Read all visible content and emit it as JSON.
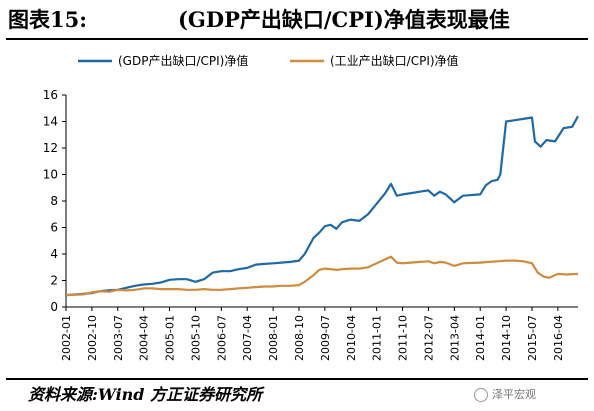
{
  "header": {
    "fig_label": "图表15:",
    "title": "(GDP产出缺口/CPI)净值表现最佳"
  },
  "source": "资料来源:Wind 方正证券研究所",
  "watermark": "泽平宏观",
  "colors": {
    "series1": "#1f6aa5",
    "series2": "#d08b3e",
    "axis": "#000000"
  },
  "chart_data": {
    "type": "line",
    "title": "",
    "xlabel": "",
    "ylabel": "",
    "ylim": [
      0,
      16
    ],
    "yticks": [
      0,
      2,
      4,
      6,
      8,
      10,
      12,
      14,
      16
    ],
    "xticks": [
      "2002-01",
      "2002-10",
      "2003-07",
      "2004-04",
      "2005-01",
      "2005-10",
      "2006-07",
      "2007-04",
      "2008-01",
      "2008-10",
      "2009-07",
      "2010-04",
      "2011-01",
      "2011-10",
      "2012-07",
      "2013-04",
      "2014-01",
      "2014-10",
      "2015-07",
      "2016-04"
    ],
    "grid": false,
    "legend": "top",
    "series": [
      {
        "name": "(GDP产出缺口/CPI)净值",
        "points": [
          [
            "2002-01",
            0.9
          ],
          [
            "2002-07",
            1.0
          ],
          [
            "2002-10",
            1.05
          ],
          [
            "2003-01",
            1.2
          ],
          [
            "2003-04",
            1.25
          ],
          [
            "2003-07",
            1.3
          ],
          [
            "2003-10",
            1.45
          ],
          [
            "2004-01",
            1.6
          ],
          [
            "2004-04",
            1.7
          ],
          [
            "2004-07",
            1.75
          ],
          [
            "2004-10",
            1.85
          ],
          [
            "2005-01",
            2.05
          ],
          [
            "2005-04",
            2.1
          ],
          [
            "2005-07",
            2.1
          ],
          [
            "2005-10",
            1.9
          ],
          [
            "2006-01",
            2.1
          ],
          [
            "2006-04",
            2.6
          ],
          [
            "2006-07",
            2.7
          ],
          [
            "2006-10",
            2.7
          ],
          [
            "2007-01",
            2.85
          ],
          [
            "2007-04",
            2.95
          ],
          [
            "2007-07",
            3.2
          ],
          [
            "2007-10",
            3.25
          ],
          [
            "2008-01",
            3.3
          ],
          [
            "2008-04",
            3.35
          ],
          [
            "2008-07",
            3.4
          ],
          [
            "2008-10",
            3.5
          ],
          [
            "2008-12",
            4.0
          ],
          [
            "2009-03",
            5.2
          ],
          [
            "2009-05",
            5.6
          ],
          [
            "2009-07",
            6.1
          ],
          [
            "2009-09",
            6.2
          ],
          [
            "2009-11",
            5.9
          ],
          [
            "2010-01",
            6.4
          ],
          [
            "2010-04",
            6.6
          ],
          [
            "2010-07",
            6.5
          ],
          [
            "2010-10",
            7.0
          ],
          [
            "2011-01",
            7.8
          ],
          [
            "2011-04",
            8.6
          ],
          [
            "2011-06",
            9.3
          ],
          [
            "2011-08",
            8.4
          ],
          [
            "2011-10",
            8.5
          ],
          [
            "2012-01",
            8.6
          ],
          [
            "2012-04",
            8.7
          ],
          [
            "2012-07",
            8.8
          ],
          [
            "2012-09",
            8.4
          ],
          [
            "2012-11",
            8.7
          ],
          [
            "2013-01",
            8.5
          ],
          [
            "2013-04",
            7.9
          ],
          [
            "2013-07",
            8.4
          ],
          [
            "2014-01",
            8.5
          ],
          [
            "2014-03",
            9.2
          ],
          [
            "2014-05",
            9.5
          ],
          [
            "2014-07",
            9.6
          ],
          [
            "2014-08",
            10.0
          ],
          [
            "2014-10",
            14.0
          ],
          [
            "2015-01",
            14.1
          ],
          [
            "2015-04",
            14.2
          ],
          [
            "2015-07",
            14.3
          ],
          [
            "2015-08",
            12.5
          ],
          [
            "2015-10",
            12.1
          ],
          [
            "2015-12",
            12.6
          ],
          [
            "2016-03",
            12.5
          ],
          [
            "2016-06",
            13.5
          ],
          [
            "2016-09",
            13.6
          ],
          [
            "2016-11",
            14.4
          ]
        ]
      },
      {
        "name": "(工业产出缺口/CPI)净值",
        "points": [
          [
            "2002-01",
            0.9
          ],
          [
            "2002-07",
            0.95
          ],
          [
            "2002-10",
            1.1
          ],
          [
            "2003-01",
            1.2
          ],
          [
            "2003-04",
            1.15
          ],
          [
            "2003-07",
            1.3
          ],
          [
            "2003-10",
            1.25
          ],
          [
            "2004-01",
            1.3
          ],
          [
            "2004-04",
            1.4
          ],
          [
            "2004-07",
            1.4
          ],
          [
            "2004-10",
            1.35
          ],
          [
            "2005-01",
            1.35
          ],
          [
            "2005-04",
            1.35
          ],
          [
            "2005-07",
            1.3
          ],
          [
            "2005-10",
            1.3
          ],
          [
            "2006-01",
            1.35
          ],
          [
            "2006-04",
            1.3
          ],
          [
            "2006-07",
            1.3
          ],
          [
            "2006-10",
            1.35
          ],
          [
            "2007-01",
            1.4
          ],
          [
            "2007-04",
            1.45
          ],
          [
            "2007-07",
            1.5
          ],
          [
            "2007-10",
            1.55
          ],
          [
            "2008-01",
            1.55
          ],
          [
            "2008-04",
            1.6
          ],
          [
            "2008-07",
            1.6
          ],
          [
            "2008-10",
            1.65
          ],
          [
            "2008-12",
            1.9
          ],
          [
            "2009-03",
            2.4
          ],
          [
            "2009-05",
            2.8
          ],
          [
            "2009-07",
            2.9
          ],
          [
            "2009-09",
            2.85
          ],
          [
            "2009-11",
            2.8
          ],
          [
            "2010-01",
            2.85
          ],
          [
            "2010-04",
            2.9
          ],
          [
            "2010-07",
            2.9
          ],
          [
            "2010-10",
            3.0
          ],
          [
            "2011-01",
            3.3
          ],
          [
            "2011-04",
            3.6
          ],
          [
            "2011-06",
            3.8
          ],
          [
            "2011-08",
            3.35
          ],
          [
            "2011-10",
            3.3
          ],
          [
            "2012-01",
            3.35
          ],
          [
            "2012-04",
            3.4
          ],
          [
            "2012-07",
            3.45
          ],
          [
            "2012-09",
            3.3
          ],
          [
            "2012-11",
            3.4
          ],
          [
            "2013-01",
            3.35
          ],
          [
            "2013-04",
            3.1
          ],
          [
            "2013-07",
            3.3
          ],
          [
            "2014-01",
            3.35
          ],
          [
            "2014-04",
            3.4
          ],
          [
            "2014-07",
            3.45
          ],
          [
            "2014-10",
            3.5
          ],
          [
            "2015-01",
            3.5
          ],
          [
            "2015-04",
            3.45
          ],
          [
            "2015-07",
            3.3
          ],
          [
            "2015-09",
            2.6
          ],
          [
            "2015-11",
            2.3
          ],
          [
            "2016-01",
            2.2
          ],
          [
            "2016-04",
            2.5
          ],
          [
            "2016-07",
            2.45
          ],
          [
            "2016-11",
            2.5
          ]
        ]
      }
    ]
  }
}
